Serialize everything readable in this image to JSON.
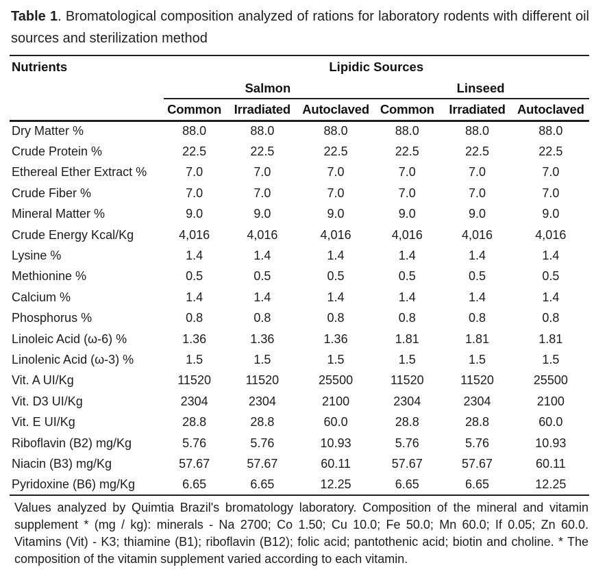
{
  "table": {
    "caption": {
      "label": "Table 1",
      "text": ". Bromatological composition analyzed of rations for laboratory rodents with different oil sources and sterilization method"
    },
    "header": {
      "nutrients": "Nutrients",
      "group": "Lipidic Sources",
      "sources": [
        "Salmon",
        "Linseed"
      ],
      "methods": [
        "Common",
        "Irradiated",
        "Autoclaved",
        "Common",
        "Irradiated",
        "Autoclaved"
      ]
    },
    "rows": [
      {
        "label": "Dry Matter %",
        "values": [
          "88.0",
          "88.0",
          "88.0",
          "88.0",
          "88.0",
          "88.0"
        ]
      },
      {
        "label": "Crude Protein %",
        "values": [
          "22.5",
          "22.5",
          "22.5",
          "22.5",
          "22.5",
          "22.5"
        ]
      },
      {
        "label": "Ethereal Ether Extract %",
        "values": [
          "7.0",
          "7.0",
          "7.0",
          "7.0",
          "7.0",
          "7.0"
        ]
      },
      {
        "label": "Crude Fiber %",
        "values": [
          "7.0",
          "7.0",
          "7.0",
          "7.0",
          "7.0",
          "7.0"
        ]
      },
      {
        "label": "Mineral Matter %",
        "values": [
          "9.0",
          "9.0",
          "9.0",
          "9.0",
          "9.0",
          "9.0"
        ]
      },
      {
        "label": "Crude Energy Kcal/Kg",
        "values": [
          "4,016",
          "4,016",
          "4,016",
          "4,016",
          "4,016",
          "4,016"
        ]
      },
      {
        "label": "Lysine %",
        "values": [
          "1.4",
          "1.4",
          "1.4",
          "1.4",
          "1.4",
          "1.4"
        ]
      },
      {
        "label": "Methionine %",
        "values": [
          "0.5",
          "0.5",
          "0.5",
          "0.5",
          "0.5",
          "0.5"
        ]
      },
      {
        "label": "Calcium %",
        "values": [
          "1.4",
          "1.4",
          "1.4",
          "1.4",
          "1.4",
          "1.4"
        ]
      },
      {
        "label": "Phosphorus %",
        "values": [
          "0.8",
          "0.8",
          "0.8",
          "0.8",
          "0.8",
          "0.8"
        ]
      },
      {
        "label": "Linoleic Acid (ω-6) %",
        "values": [
          "1.36",
          "1.36",
          "1.36",
          "1.81",
          "1.81",
          "1.81"
        ]
      },
      {
        "label": "Linolenic Acid (ω-3) %",
        "values": [
          "1.5",
          "1.5",
          "1.5",
          "1.5",
          "1.5",
          "1.5"
        ]
      },
      {
        "label": "Vit. A UI/Kg",
        "values": [
          "11520",
          "11520",
          "25500",
          "11520",
          "11520",
          "25500"
        ]
      },
      {
        "label": "Vit. D3 UI/Kg",
        "values": [
          "2304",
          "2304",
          "2100",
          "2304",
          "2304",
          "2100"
        ]
      },
      {
        "label": "Vit. E UI/Kg",
        "values": [
          "28.8",
          "28.8",
          "60.0",
          "28.8",
          "28.8",
          "60.0"
        ]
      },
      {
        "label": "Riboflavin (B2) mg/Kg",
        "values": [
          "5.76",
          "5.76",
          "10.93",
          "5.76",
          "5.76",
          "10.93"
        ]
      },
      {
        "label": "Niacin (B3) mg/Kg",
        "values": [
          "57.67",
          "57.67",
          "60.11",
          "57.67",
          "57.67",
          "60.11"
        ]
      },
      {
        "label": "Pyridoxine (B6) mg/Kg",
        "values": [
          "6.65",
          "6.65",
          "12.25",
          "6.65",
          "6.65",
          "12.25"
        ]
      }
    ],
    "footnote": "Values analyzed by Quimtia Brazil's bromatology laboratory. Composition of the mineral and vitamin supplement * (mg / kg): minerals - Na 2700; Co 1.50; Cu 10.0; Fe 50.0; Mn 60.0; If 0.05; Zn 60.0. Vitamins (Vit) - K3; thiamine (B1); riboflavin (B12); folic acid; pantothenic acid; biotin and choline. * The composition of the vitamin supplement varied according to each vitamin."
  }
}
